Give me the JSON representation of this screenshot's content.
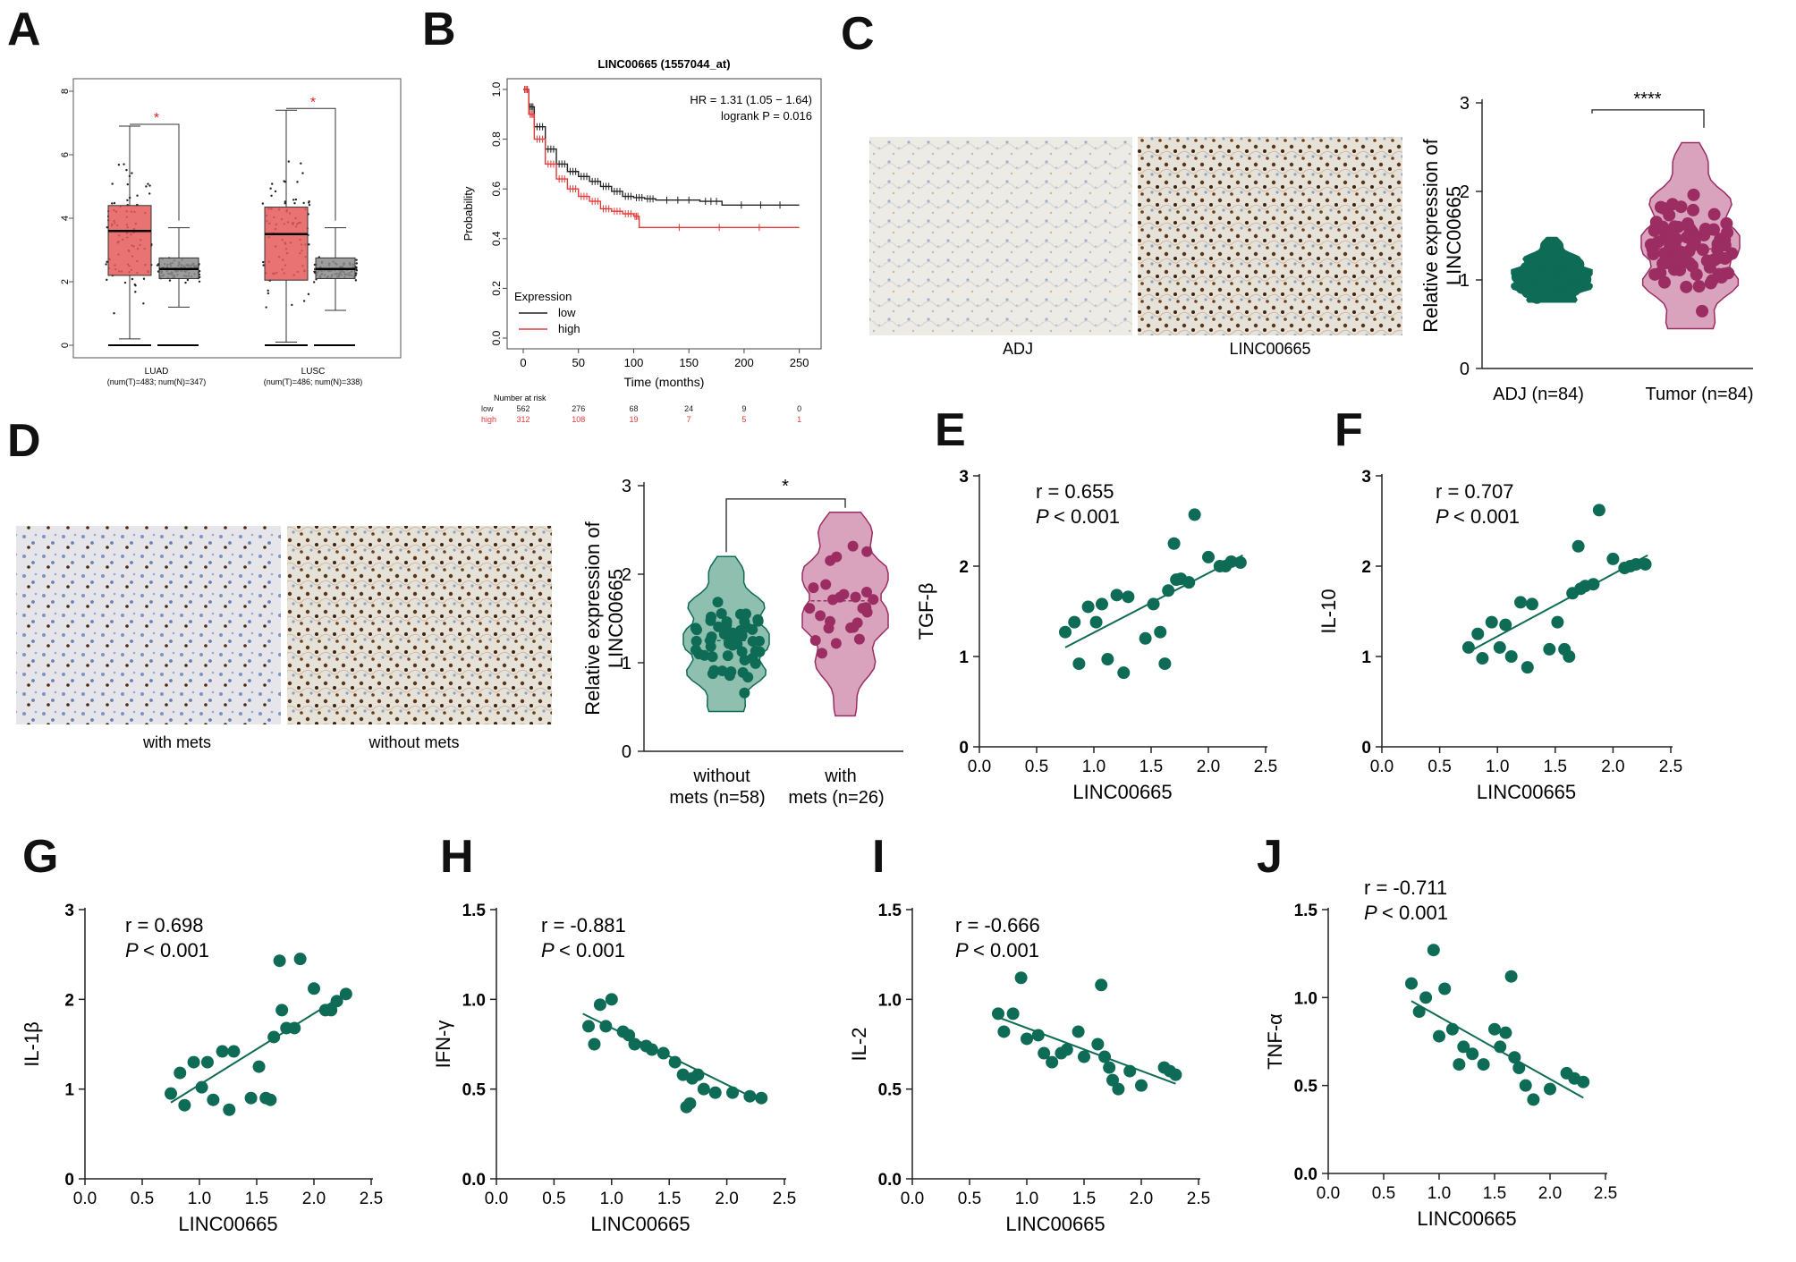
{
  "colors": {
    "green": "#0e6b55",
    "maroon": "#9b2d63",
    "maroon_light": "#d9a3bd",
    "green_light": "#8fbfae",
    "red_box": "#e55b5b",
    "grey_box": "#8c8c8c",
    "km_low": "#222222",
    "km_high": "#e23a3a",
    "sig_red": "#e02020"
  },
  "panels": {
    "A": "A",
    "B": "B",
    "C": "C",
    "D": "D",
    "E": "E",
    "F": "F",
    "G": "G",
    "H": "H",
    "I": "I",
    "J": "J"
  },
  "panel_c_labels": {
    "left": "ADJ",
    "right": "LINC00665"
  },
  "panel_d_labels": {
    "left": "with mets",
    "right": "without mets"
  },
  "chart_data": [
    {
      "id": "A",
      "type": "box",
      "title": "",
      "ylim": [
        0,
        8
      ],
      "yticks": [
        "0",
        "2",
        "4",
        "6",
        "8"
      ],
      "groups": [
        {
          "label": "LUAD",
          "sublabel": "(num(T)=483; num(N)=347)",
          "tumor": {
            "q1": 2.2,
            "median": 3.6,
            "q3": 4.4,
            "lower": 0.2,
            "upper": 6.9
          },
          "normal": {
            "q1": 2.1,
            "median": 2.4,
            "q3": 2.75,
            "lower": 1.2,
            "upper": 3.7
          }
        },
        {
          "label": "LUSC",
          "sublabel": "(num(T)=486; num(N)=338)",
          "tumor": {
            "q1": 2.05,
            "median": 3.5,
            "q3": 4.35,
            "lower": 0.1,
            "upper": 7.4
          },
          "normal": {
            "q1": 2.1,
            "median": 2.4,
            "q3": 2.75,
            "lower": 1.1,
            "upper": 3.7
          }
        }
      ],
      "significance": [
        "*",
        "*"
      ]
    },
    {
      "id": "B",
      "type": "line",
      "title": "LINC00665 (1557044_at)",
      "xlabel": "Time (months)",
      "ylabel": "Probability",
      "xlim": [
        0,
        260
      ],
      "ylim": [
        0,
        1
      ],
      "xticks": [
        "0",
        "50",
        "100",
        "150",
        "200",
        "250"
      ],
      "yticks": [
        "0.0",
        "0.2",
        "0.4",
        "0.6",
        "0.8",
        "1.0"
      ],
      "annotation": [
        "HR = 1.31 (1.05 − 1.64)",
        "logrank P = 0.016"
      ],
      "legend_title": "Expression",
      "series": [
        {
          "name": "low",
          "x": [
            0,
            5,
            10,
            20,
            30,
            40,
            50,
            60,
            70,
            80,
            90,
            100,
            110,
            120,
            160,
            180,
            250
          ],
          "values": [
            1.0,
            0.93,
            0.85,
            0.76,
            0.7,
            0.67,
            0.65,
            0.63,
            0.61,
            0.59,
            0.57,
            0.565,
            0.56,
            0.555,
            0.55,
            0.535,
            0.535
          ]
        },
        {
          "name": "high",
          "x": [
            0,
            5,
            10,
            20,
            30,
            40,
            50,
            60,
            70,
            80,
            90,
            100,
            105,
            250
          ],
          "values": [
            1.0,
            0.9,
            0.8,
            0.7,
            0.64,
            0.6,
            0.57,
            0.55,
            0.52,
            0.51,
            0.5,
            0.49,
            0.445,
            0.445
          ]
        }
      ],
      "risk_table": {
        "heading": "Number at risk",
        "rows": [
          {
            "name": "low",
            "values": [
              "562",
              "276",
              "68",
              "24",
              "9",
              "0"
            ]
          },
          {
            "name": "high",
            "values": [
              "312",
              "108",
              "19",
              "7",
              "5",
              "1"
            ]
          }
        ]
      }
    },
    {
      "id": "C",
      "type": "violin",
      "ylabel": "Relative expression of LINC00665",
      "ylabel_lines": [
        "Relative expression of",
        "LINC00665"
      ],
      "ylim": [
        0,
        3
      ],
      "yticks": [
        "0",
        "1",
        "2",
        "3"
      ],
      "groups": [
        {
          "label": "ADJ (n=84)",
          "n": 84,
          "min": 0.75,
          "max": 1.48,
          "median": 1.02
        },
        {
          "label": "Tumor (n=84)",
          "n": 84,
          "min": 0.45,
          "max": 2.55,
          "median": 1.35
        }
      ],
      "significance": "****"
    },
    {
      "id": "D",
      "type": "violin",
      "ylabel_lines": [
        "Relative expression of",
        "LINC00665"
      ],
      "ylim": [
        0,
        3
      ],
      "yticks": [
        "0",
        "1",
        "2",
        "3"
      ],
      "groups": [
        {
          "label_line1": "without",
          "label_line2": "mets (n=58)",
          "n": 58,
          "min": 0.45,
          "max": 2.2,
          "median": 1.25
        },
        {
          "label_line1": "with",
          "label_line2": "mets (n=26)",
          "n": 26,
          "min": 0.4,
          "max": 2.7,
          "median": 1.7
        }
      ],
      "significance": "*"
    },
    {
      "id": "E",
      "type": "scatter",
      "xlabel": "LINC00665",
      "ylabel": "TGF-β",
      "r_text": "r = 0.655",
      "p_text": "< 0.001",
      "xlim": [
        0,
        2.5
      ],
      "ylim": [
        0,
        3
      ],
      "xticks": [
        "0.0",
        "0.5",
        "1.0",
        "1.5",
        "2.0",
        "2.5"
      ],
      "yticks": [
        "0",
        "1",
        "2",
        "3"
      ],
      "x": [
        0.75,
        0.83,
        0.87,
        0.95,
        1.02,
        1.07,
        1.12,
        1.2,
        1.26,
        1.3,
        1.45,
        1.52,
        1.58,
        1.62,
        1.65,
        1.7,
        1.72,
        1.76,
        1.83,
        1.88,
        2.0,
        2.1,
        2.15,
        2.2,
        2.28
      ],
      "values": [
        1.27,
        1.38,
        0.92,
        1.55,
        1.38,
        1.58,
        0.97,
        1.68,
        0.82,
        1.66,
        1.2,
        1.58,
        1.27,
        0.92,
        1.73,
        2.25,
        1.85,
        1.86,
        1.82,
        2.57,
        2.1,
        2.0,
        2.0,
        2.05,
        2.04
      ],
      "fit": {
        "x1": 0.75,
        "y1": 1.1,
        "x2": 2.3,
        "y2": 2.12
      }
    },
    {
      "id": "F",
      "type": "scatter",
      "xlabel": "LINC00665",
      "ylabel": "IL-10",
      "r_text": "r = 0.707",
      "p_text": "< 0.001",
      "xlim": [
        0,
        2.5
      ],
      "ylim": [
        0,
        3
      ],
      "xticks": [
        "0.0",
        "0.5",
        "1.0",
        "1.5",
        "2.0",
        "2.5"
      ],
      "yticks": [
        "0",
        "1",
        "2",
        "3"
      ],
      "x": [
        0.75,
        0.83,
        0.87,
        0.95,
        1.02,
        1.07,
        1.12,
        1.2,
        1.26,
        1.3,
        1.45,
        1.52,
        1.58,
        1.62,
        1.65,
        1.7,
        1.72,
        1.76,
        1.83,
        1.88,
        2.0,
        2.1,
        2.15,
        2.2,
        2.28
      ],
      "values": [
        1.1,
        1.25,
        0.98,
        1.38,
        1.1,
        1.35,
        1.0,
        1.6,
        0.88,
        1.58,
        1.08,
        1.38,
        1.08,
        1.0,
        1.7,
        2.22,
        1.75,
        1.78,
        1.8,
        2.62,
        2.08,
        1.98,
        2.0,
        2.02,
        2.02
      ],
      "fit": {
        "x1": 0.75,
        "y1": 1.05,
        "x2": 2.3,
        "y2": 2.12
      }
    },
    {
      "id": "G",
      "type": "scatter",
      "xlabel": "LINC00665",
      "ylabel": "IL-1β",
      "r_text": "r = 0.698",
      "p_text": "< 0.001",
      "xlim": [
        0,
        2.5
      ],
      "ylim": [
        0,
        3
      ],
      "xticks": [
        "0.0",
        "0.5",
        "1.0",
        "1.5",
        "2.0",
        "2.5"
      ],
      "yticks": [
        "0",
        "1",
        "2",
        "3"
      ],
      "x": [
        0.75,
        0.83,
        0.87,
        0.95,
        1.02,
        1.07,
        1.12,
        1.2,
        1.26,
        1.3,
        1.45,
        1.52,
        1.58,
        1.62,
        1.65,
        1.7,
        1.72,
        1.76,
        1.83,
        1.88,
        2.0,
        2.1,
        2.15,
        2.2,
        2.28
      ],
      "values": [
        0.95,
        1.18,
        0.82,
        1.3,
        1.02,
        1.3,
        0.88,
        1.42,
        0.77,
        1.42,
        0.9,
        1.25,
        0.9,
        0.88,
        1.58,
        2.43,
        1.88,
        1.68,
        1.68,
        2.45,
        2.12,
        1.88,
        1.88,
        1.98,
        2.06
      ],
      "fit": {
        "x1": 0.75,
        "y1": 0.85,
        "x2": 2.3,
        "y2": 2.08
      }
    },
    {
      "id": "H",
      "type": "scatter",
      "xlabel": "LINC00665",
      "ylabel": "IFN-γ",
      "r_text": "r = -0.881",
      "p_text": "< 0.001",
      "xlim": [
        0,
        2.5
      ],
      "ylim": [
        0,
        1.5
      ],
      "xticks": [
        "0.0",
        "0.5",
        "1.0",
        "1.5",
        "2.0",
        "2.5"
      ],
      "yticks": [
        "0.0",
        "0.5",
        "1.0",
        "1.5"
      ],
      "x": [
        0.8,
        0.85,
        0.9,
        0.95,
        1.0,
        1.1,
        1.15,
        1.2,
        1.3,
        1.35,
        1.45,
        1.55,
        1.62,
        1.65,
        1.68,
        1.7,
        1.75,
        1.8,
        1.9,
        2.05,
        2.2,
        2.3
      ],
      "values": [
        0.85,
        0.75,
        0.97,
        0.85,
        1.0,
        0.82,
        0.8,
        0.75,
        0.74,
        0.72,
        0.7,
        0.65,
        0.58,
        0.4,
        0.42,
        0.56,
        0.58,
        0.5,
        0.48,
        0.48,
        0.46,
        0.45
      ],
      "fit": {
        "x1": 0.75,
        "y1": 0.92,
        "x2": 2.3,
        "y2": 0.43
      }
    },
    {
      "id": "I",
      "type": "scatter",
      "xlabel": "LINC00665",
      "ylabel": "IL-2",
      "r_text": "r = -0.666",
      "p_text": "< 0.001",
      "xlim": [
        0,
        2.5
      ],
      "ylim": [
        0,
        1.5
      ],
      "xticks": [
        "0.0",
        "0.5",
        "1.0",
        "1.5",
        "2.0",
        "2.5"
      ],
      "yticks": [
        "0.0",
        "0.5",
        "1.0",
        "1.5"
      ],
      "x": [
        0.75,
        0.8,
        0.88,
        0.95,
        1.0,
        1.1,
        1.15,
        1.22,
        1.3,
        1.35,
        1.45,
        1.5,
        1.62,
        1.65,
        1.68,
        1.72,
        1.75,
        1.8,
        1.9,
        2.0,
        2.2,
        2.25,
        2.3
      ],
      "values": [
        0.92,
        0.82,
        0.92,
        1.12,
        0.78,
        0.8,
        0.7,
        0.65,
        0.7,
        0.72,
        0.82,
        0.68,
        0.75,
        1.08,
        0.68,
        0.62,
        0.55,
        0.5,
        0.6,
        0.52,
        0.62,
        0.6,
        0.58
      ],
      "fit": {
        "x1": 0.75,
        "y1": 0.9,
        "x2": 2.3,
        "y2": 0.53
      }
    },
    {
      "id": "J",
      "type": "scatter",
      "xlabel": "LINC00665",
      "ylabel": "TNF-α",
      "r_text": "r = -0.711",
      "p_text": "< 0.001",
      "xlim": [
        0,
        2.5
      ],
      "ylim": [
        0,
        1.5
      ],
      "xticks": [
        "0.0",
        "0.5",
        "1.0",
        "1.5",
        "2.0",
        "2.5"
      ],
      "yticks": [
        "0.0",
        "0.5",
        "1.0",
        "1.5"
      ],
      "x": [
        0.75,
        0.82,
        0.88,
        0.95,
        1.0,
        1.05,
        1.12,
        1.18,
        1.22,
        1.3,
        1.4,
        1.5,
        1.55,
        1.6,
        1.65,
        1.68,
        1.72,
        1.78,
        1.85,
        2.0,
        2.15,
        2.22,
        2.3
      ],
      "values": [
        1.08,
        0.92,
        1.0,
        1.27,
        0.78,
        1.05,
        0.82,
        0.62,
        0.72,
        0.68,
        0.62,
        0.82,
        0.72,
        0.8,
        1.12,
        0.66,
        0.6,
        0.5,
        0.42,
        0.48,
        0.57,
        0.54,
        0.52
      ],
      "fit": {
        "x1": 0.75,
        "y1": 0.98,
        "x2": 2.3,
        "y2": 0.43
      }
    }
  ]
}
